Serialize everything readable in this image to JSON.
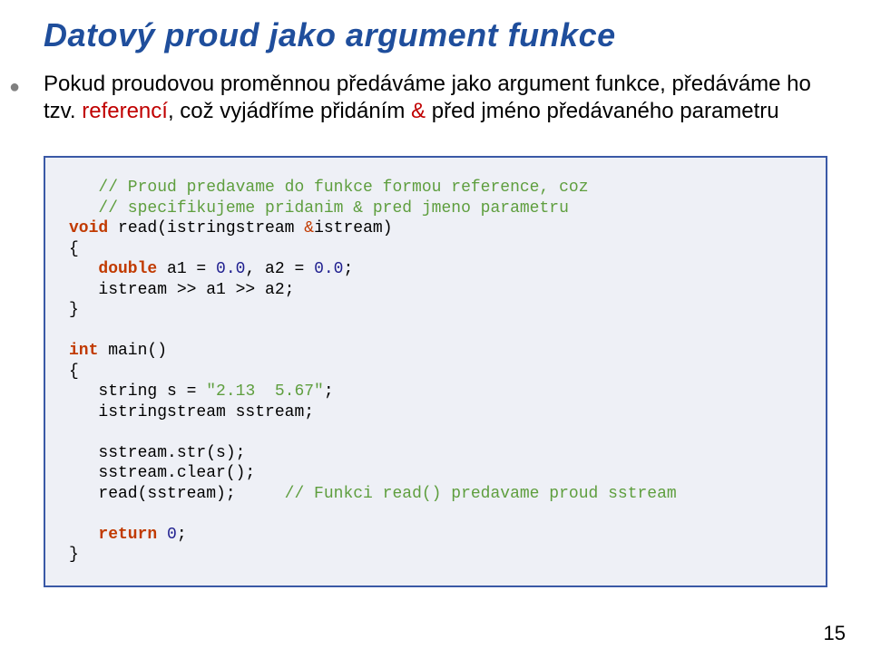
{
  "title": "Datový proud jako argument funkce",
  "intro": {
    "line1": "Pokud proudovou proměnnou předáváme jako argument funkce, předáváme ho tzv. ",
    "ref_word": "referencí",
    "line2a": ", což vyjádříme  přidáním ",
    "amp": "&",
    "line2b": " před jméno předávaného parametru"
  },
  "code": {
    "c1": "   // Proud predavame do funkce formou reference, coz",
    "c2": "   // specifikujeme pridanim & pred jmeno parametru",
    "kw_void": "void",
    "fn_name": " read(istringstream ",
    "amp_red": "&",
    "fn_tail": "istream)",
    "lbrace": "{",
    "indent": "   ",
    "kw_double": "double",
    "decl_vars": " a1 = ",
    "num0a": "0.0",
    "decl_mid": ", a2 = ",
    "num0b": "0.0",
    "semi": ";",
    "stream_line": "   istream >> a1 >> a2;",
    "rbrace": "}",
    "kw_int": "int",
    "main_sig": " main()",
    "str_decl_pre": "   string s = ",
    "str_lit": "\"2.13  5.67\"",
    "sstream_decl": "   istringstream sstream;",
    "sstr_str": "   sstream.str(s);",
    "sstr_clear": "   sstream.clear();",
    "read_call": "   read(sstream);     ",
    "read_comment": "// Funkci read() predavame proud sstream",
    "kw_return": "return",
    "ret_sp": " ",
    "num_zero": "0"
  },
  "pageNumber": "15",
  "colors": {
    "title": "#1f4e9c",
    "ref": "#c00000",
    "box_border": "#3a59a6",
    "box_bg": "#eef0f6",
    "comment": "#5e9e3e",
    "keyword": "#c13a00",
    "number": "#1f1f8f",
    "bullet": "#808080"
  }
}
